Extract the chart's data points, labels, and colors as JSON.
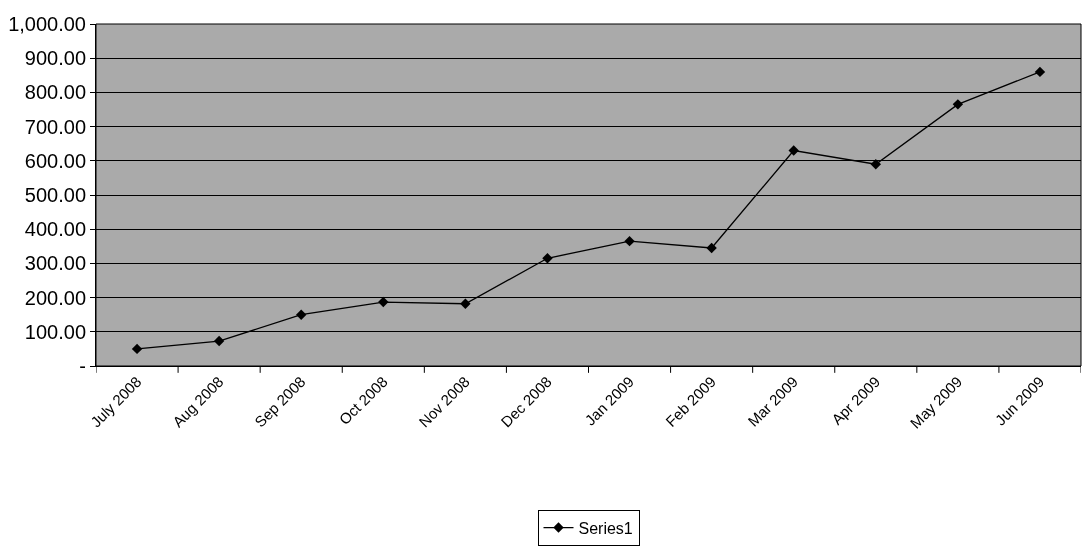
{
  "chart_data": {
    "type": "line",
    "categories": [
      "July 2008",
      "Aug 2008",
      "Sep 2008",
      "Oct 2008",
      "Nov 2008",
      "Dec 2008",
      "Jan 2009",
      "Feb 2009",
      "Mar 2009",
      "Apr 2009",
      "May 2009",
      "Jun 2009"
    ],
    "series": [
      {
        "name": "Series1",
        "color": "#000000",
        "values": [
          50,
          73,
          150,
          187,
          182,
          315,
          365,
          345,
          630,
          590,
          765,
          860
        ]
      }
    ],
    "ylim": [
      0,
      1000
    ],
    "yticks": [
      {
        "value": 0,
        "label": "-"
      },
      {
        "value": 100,
        "label": "100.00"
      },
      {
        "value": 200,
        "label": "200.00"
      },
      {
        "value": 300,
        "label": "300.00"
      },
      {
        "value": 400,
        "label": "400.00"
      },
      {
        "value": 500,
        "label": "500.00"
      },
      {
        "value": 600,
        "label": "600.00"
      },
      {
        "value": 700,
        "label": "700.00"
      },
      {
        "value": 800,
        "label": "800.00"
      },
      {
        "value": 900,
        "label": "900.00"
      },
      {
        "value": 1000,
        "label": "1,000.00"
      }
    ],
    "grid": "y",
    "legend": "bottom",
    "marker": "diamond",
    "line_style": "solid"
  }
}
